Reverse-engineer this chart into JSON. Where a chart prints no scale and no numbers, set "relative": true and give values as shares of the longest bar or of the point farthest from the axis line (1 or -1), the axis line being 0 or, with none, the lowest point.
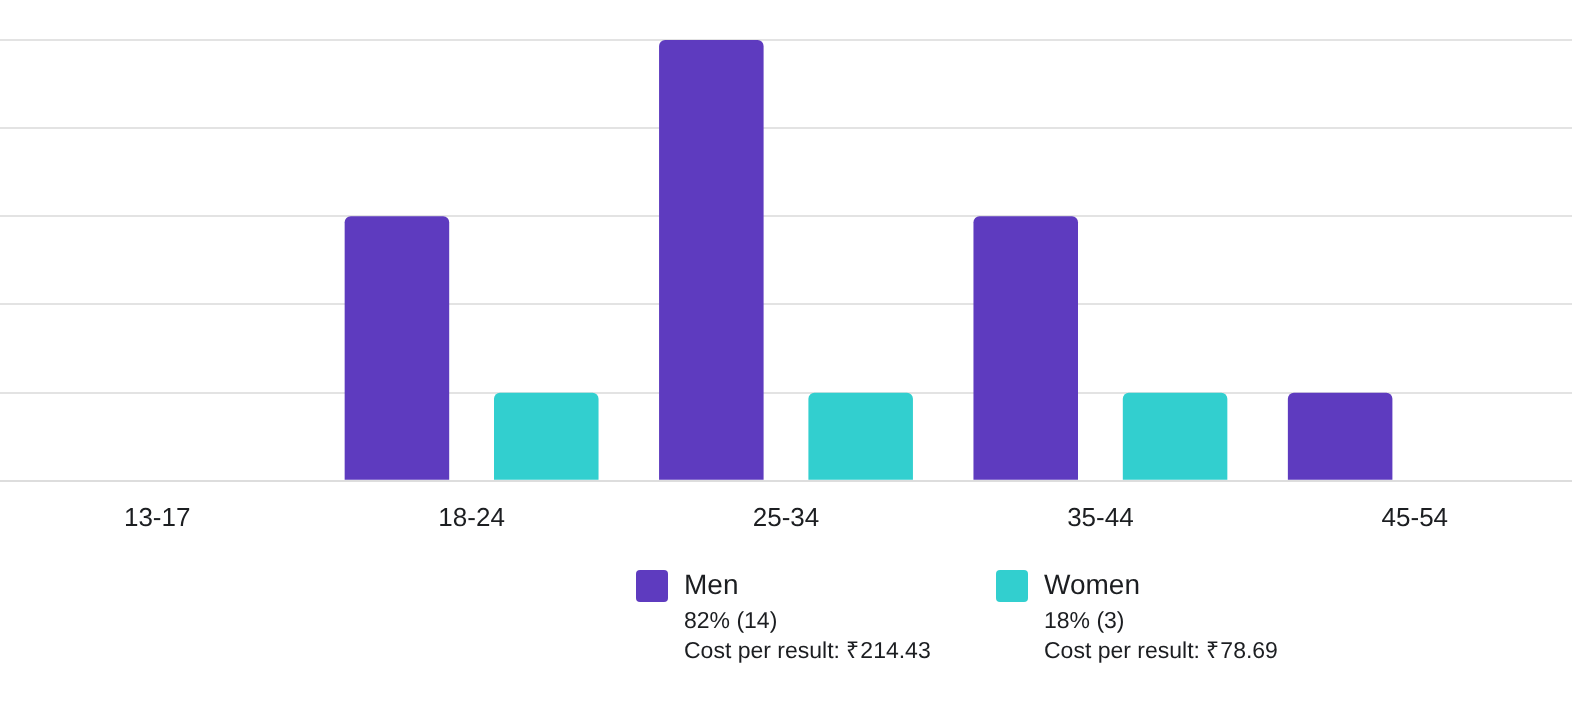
{
  "chart_data": {
    "type": "bar",
    "relative": true,
    "grid": "y",
    "legend": "bottom",
    "categories": [
      "13-17",
      "18-24",
      "25-34",
      "35-44",
      "45-54"
    ],
    "series": [
      {
        "name": "Men",
        "color": "#5e3bbf",
        "values": [
          0,
          0.6,
          1,
          0.6,
          0.2
        ]
      },
      {
        "name": "Women",
        "color": "#32cfcf",
        "values": [
          0,
          0.2,
          0.2,
          0.2,
          0
        ]
      }
    ],
    "annotations": [
      "82% (14)",
      "Cost per result: ₹214.43",
      "18% (3)",
      "Cost per result: ₹78.69"
    ]
  }
}
